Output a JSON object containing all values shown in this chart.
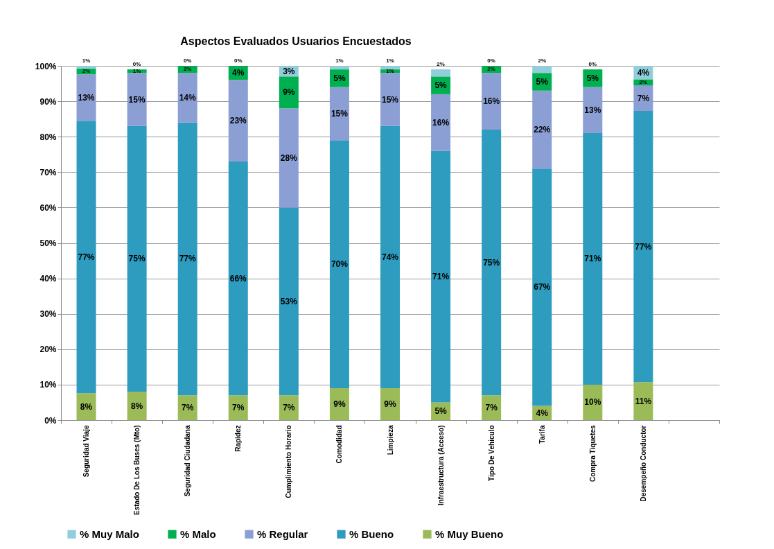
{
  "chart_data": {
    "type": "bar",
    "stacked": true,
    "title": "Aspectos Evaluados Usuarios Encuestados",
    "categories": [
      "Seguridad Viaje",
      "Estado De Los Buses (Mto)",
      "Seguridad Ciudadana",
      "Rapidez",
      "Cumplimiento Horario",
      "Comodidad",
      "Limpieza",
      "Infraestructura (Acceso)",
      "Tipo De Vehiculo",
      "Tarifa",
      "Compra Tiquetes",
      "Desempeño Conductor",
      null
    ],
    "series": [
      {
        "name": "% Muy Bueno",
        "color": "#9bbb59",
        "values": [
          7.6,
          8,
          7,
          7,
          7,
          9,
          9,
          5,
          7,
          4,
          10,
          10.7,
          null
        ],
        "value_labels": [
          "8%",
          "8%",
          "7%",
          "7%",
          "7%",
          "9%",
          "9%",
          "5%",
          "7%",
          "4%",
          "10%",
          "11%",
          null
        ]
      },
      {
        "name": "% Bueno",
        "color": "#2e9cbf",
        "values": [
          76.9,
          75,
          77,
          66,
          53,
          70,
          74,
          71,
          75,
          67,
          71,
          76.6,
          null
        ],
        "value_labels": [
          "77%",
          "75%",
          "77%",
          "66%",
          "53%",
          "70%",
          "74%",
          "71%",
          "75%",
          "67%",
          "71%",
          "77%",
          null
        ]
      },
      {
        "name": "% Regular",
        "color": "#8c9fd4",
        "values": [
          13.1,
          15,
          14,
          23,
          28,
          15,
          15,
          16,
          16,
          22,
          13,
          7.2,
          null
        ],
        "value_labels": [
          "13%",
          "15%",
          "14%",
          "23%",
          "28%",
          "15%",
          "15%",
          "16%",
          "16%",
          "22%",
          "13%",
          "7%",
          null
        ]
      },
      {
        "name": "% Malo",
        "color": "#00b050",
        "values": [
          1.6,
          1,
          2,
          4,
          9,
          5,
          1,
          5,
          2,
          5,
          5,
          1.7,
          null
        ],
        "value_labels": [
          "2%",
          "1%",
          "2%",
          "4%",
          "9%",
          "5%",
          "1%",
          "5%",
          "2%",
          "5%",
          "5%",
          "2%",
          null
        ]
      },
      {
        "name": "% Muy Malo",
        "color": "#92cddc",
        "values": [
          0.8,
          0,
          0,
          0,
          3,
          1,
          1,
          2,
          0,
          2,
          0,
          3.8,
          null
        ],
        "value_labels": [
          "1%",
          "0%",
          "0%",
          "0%",
          "3%",
          "1%",
          "1%",
          "2%",
          "0%",
          "2%",
          "0%",
          "4%",
          null
        ]
      }
    ],
    "ylim": [
      0,
      100
    ],
    "yticks": [
      {
        "value": 0,
        "label": "0%"
      },
      {
        "value": 10,
        "label": "10%"
      },
      {
        "value": 20,
        "label": "20%"
      },
      {
        "value": 30,
        "label": "30%"
      },
      {
        "value": 40,
        "label": "40%"
      },
      {
        "value": 50,
        "label": "50%"
      },
      {
        "value": 60,
        "label": "60%"
      },
      {
        "value": 70,
        "label": "70%"
      },
      {
        "value": 80,
        "label": "80%"
      },
      {
        "value": 90,
        "label": "90%"
      },
      {
        "value": 100,
        "label": "100%"
      }
    ],
    "grid": "y",
    "legend": "bottom"
  }
}
